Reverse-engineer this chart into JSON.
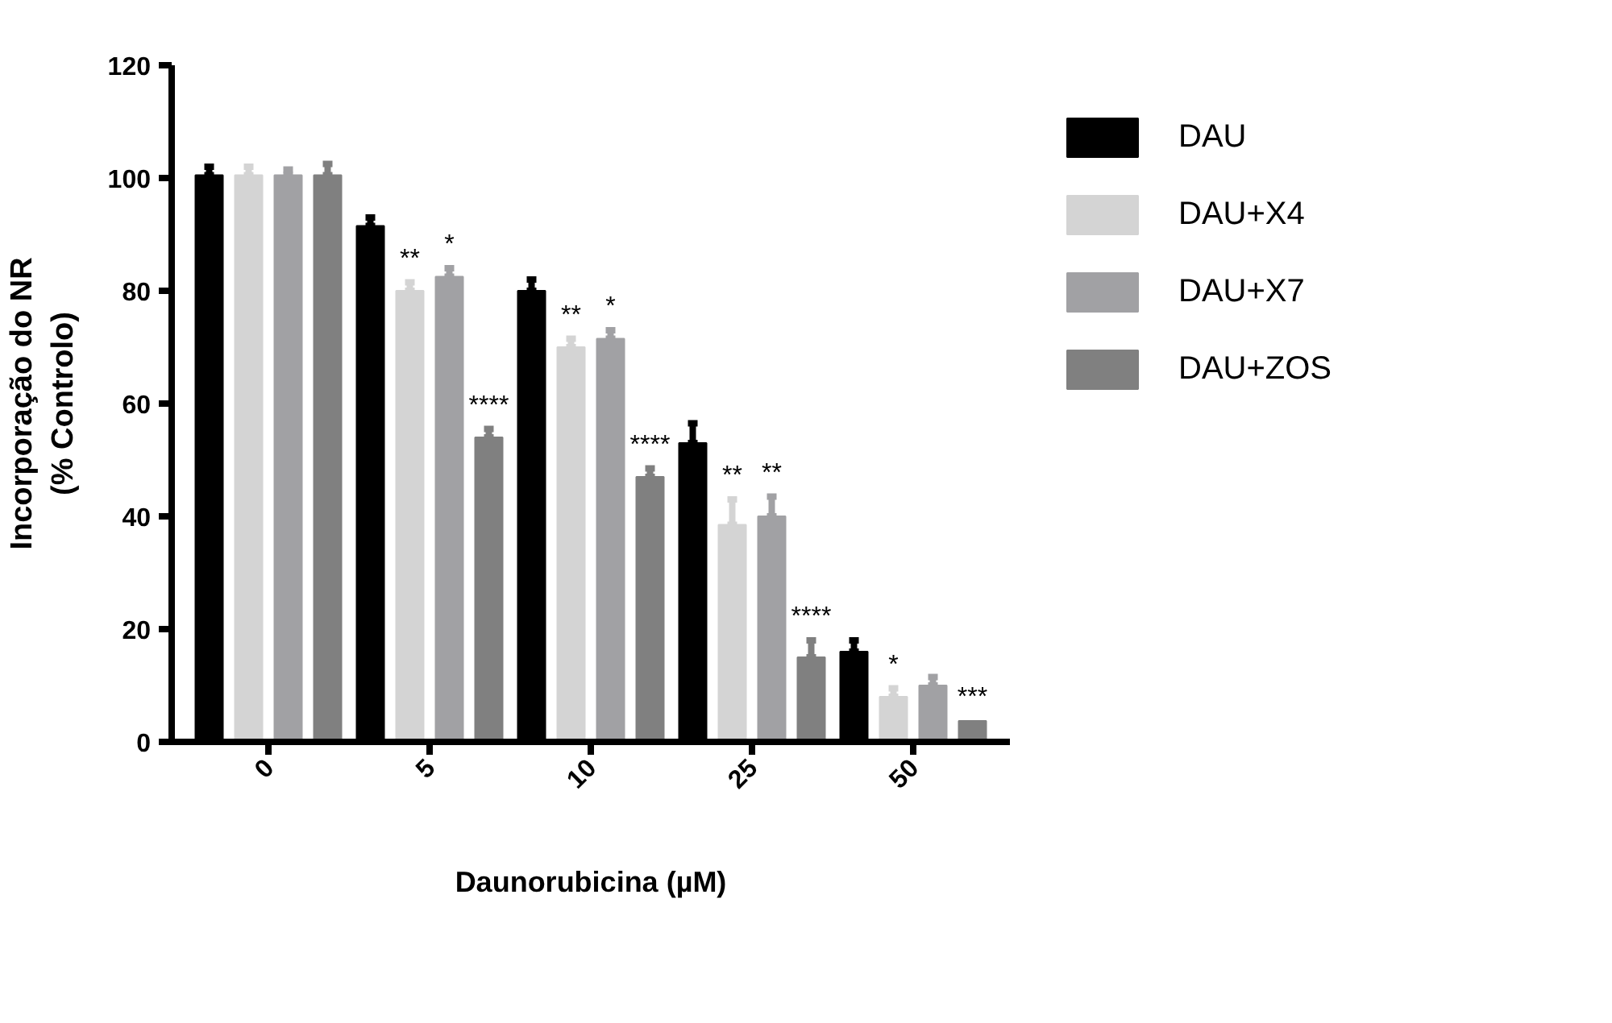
{
  "chart_data": {
    "type": "bar",
    "xlabel": "Daunorubicina (µM)",
    "ylabel": "Incorporação do NR\n(% Controlo)",
    "categories": [
      "0",
      "5",
      "10",
      "25",
      "50"
    ],
    "series": [
      {
        "name": "DAU",
        "color": "#000000",
        "values": [
          100.5,
          91.5,
          80,
          53,
          16
        ],
        "errors": [
          [
            100.5,
            102
          ],
          [
            91.5,
            93
          ],
          [
            80,
            82
          ],
          [
            53,
            56.5
          ],
          [
            16,
            18
          ]
        ]
      },
      {
        "name": "DAU+X4",
        "color": "#d4d4d4",
        "values": [
          100.5,
          80,
          70,
          38.5,
          8
        ],
        "errors": [
          [
            100.5,
            102
          ],
          [
            80,
            81.5
          ],
          [
            70,
            71.5
          ],
          [
            38.5,
            43
          ],
          [
            8,
            9.5
          ]
        ],
        "value_labels": [
          null,
          "**",
          "**",
          "**",
          "*"
        ]
      },
      {
        "name": "DAU+X7",
        "color": "#a1a1a4",
        "values": [
          100.5,
          82.5,
          71.5,
          40,
          10
        ],
        "errors": [
          [
            100.5,
            101.5
          ],
          [
            82.5,
            84
          ],
          [
            71.5,
            73
          ],
          [
            40,
            43.5
          ],
          [
            10,
            11.5
          ]
        ],
        "value_labels": [
          null,
          "*",
          "*",
          "**",
          null
        ]
      },
      {
        "name": "DAU+ZOS",
        "color": "#808080",
        "values": [
          100.5,
          54,
          47,
          15,
          3.7
        ],
        "errors": [
          [
            100.5,
            102.5
          ],
          [
            54,
            55.5
          ],
          [
            47,
            48.5
          ],
          [
            15,
            18
          ],
          null
        ],
        "value_labels": [
          null,
          "****",
          "****",
          "****",
          "***"
        ]
      }
    ],
    "ylim": [
      0,
      120
    ],
    "yticks": [
      0,
      20,
      40,
      60,
      80,
      100,
      120
    ],
    "grid": false,
    "legend": "right"
  }
}
